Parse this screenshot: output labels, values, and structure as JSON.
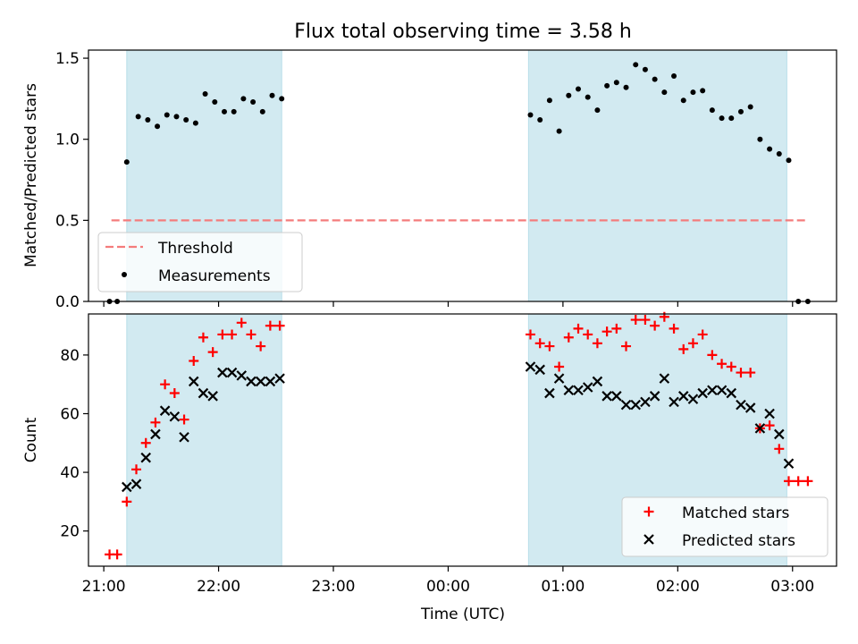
{
  "colors": {
    "threshold": "#f47c7c",
    "measurement": "#000000",
    "matched": "#ff0000",
    "predicted": "#000000",
    "shade": "#add8e6"
  },
  "chart_data": [
    {
      "type": "scatter",
      "title": "Flux total observing time = 3.58 h",
      "ylabel": "Matched/Predicted stars",
      "xlabel": "",
      "ylim": [
        0,
        1.55
      ],
      "xlim": [
        "20:52",
        "03:23"
      ],
      "yticks": [
        "0.0",
        "0.5",
        "1.0",
        "1.5"
      ],
      "grid": false,
      "legend": {
        "placement": "lower-left",
        "entries": [
          "Threshold",
          "Measurements"
        ]
      },
      "shaded_intervals": [
        [
          "21:12",
          "22:33"
        ],
        [
          "00:42",
          "02:57"
        ]
      ],
      "threshold": {
        "name": "Threshold",
        "y": 0.5,
        "x": [
          "21:04",
          "03:07"
        ]
      },
      "series": [
        {
          "name": "Measurements",
          "marker": "dot",
          "x": [
            "21:03",
            "21:07",
            "21:12",
            "21:18",
            "21:23",
            "21:28",
            "21:33",
            "21:38",
            "21:43",
            "21:48",
            "21:53",
            "21:58",
            "22:03",
            "22:08",
            "22:13",
            "22:18",
            "22:23",
            "22:28",
            "22:33",
            "00:43",
            "00:48",
            "00:53",
            "00:58",
            "01:03",
            "01:08",
            "01:13",
            "01:18",
            "01:23",
            "01:28",
            "01:33",
            "01:38",
            "01:43",
            "01:48",
            "01:53",
            "01:58",
            "02:03",
            "02:08",
            "02:13",
            "02:18",
            "02:23",
            "02:28",
            "02:33",
            "02:38",
            "02:43",
            "02:48",
            "02:53",
            "02:58",
            "03:03",
            "03:08"
          ],
          "y": [
            0.0,
            0.0,
            0.86,
            1.14,
            1.12,
            1.08,
            1.15,
            1.14,
            1.12,
            1.1,
            1.28,
            1.23,
            1.17,
            1.17,
            1.25,
            1.23,
            1.17,
            1.27,
            1.25,
            1.15,
            1.12,
            1.24,
            1.05,
            1.27,
            1.31,
            1.26,
            1.18,
            1.33,
            1.35,
            1.32,
            1.46,
            1.43,
            1.37,
            1.29,
            1.39,
            1.24,
            1.29,
            1.3,
            1.18,
            1.13,
            1.13,
            1.17,
            1.2,
            1.0,
            0.94,
            0.91,
            0.87,
            0.0,
            0.0
          ]
        }
      ]
    },
    {
      "type": "scatter",
      "title": "",
      "ylabel": "Count",
      "xlabel": "Time (UTC)",
      "ylim": [
        8,
        94
      ],
      "xlim": [
        "20:52",
        "03:23"
      ],
      "yticks": [
        "20",
        "40",
        "60",
        "80"
      ],
      "xticks": [
        "21:00",
        "22:00",
        "23:00",
        "00:00",
        "01:00",
        "02:00",
        "03:00"
      ],
      "grid": false,
      "legend": {
        "placement": "lower-right",
        "entries": [
          "Matched stars",
          "Predicted stars"
        ]
      },
      "shaded_intervals": [
        [
          "21:12",
          "22:33"
        ],
        [
          "00:42",
          "02:57"
        ]
      ],
      "series": [
        {
          "name": "Matched stars",
          "marker": "plus",
          "x": [
            "21:03",
            "21:07",
            "21:12",
            "21:17",
            "21:22",
            "21:27",
            "21:32",
            "21:37",
            "21:42",
            "21:47",
            "21:52",
            "21:57",
            "22:02",
            "22:07",
            "22:12",
            "22:17",
            "22:22",
            "22:27",
            "22:32",
            "00:43",
            "00:48",
            "00:53",
            "00:58",
            "01:03",
            "01:08",
            "01:13",
            "01:18",
            "01:23",
            "01:28",
            "01:33",
            "01:38",
            "01:43",
            "01:48",
            "01:53",
            "01:58",
            "02:03",
            "02:08",
            "02:13",
            "02:18",
            "02:23",
            "02:28",
            "02:33",
            "02:38",
            "02:43",
            "02:48",
            "02:53",
            "02:58",
            "03:03",
            "03:08"
          ],
          "y": [
            12,
            12,
            30,
            41,
            50,
            57,
            70,
            67,
            58,
            78,
            86,
            81,
            87,
            87,
            91,
            87,
            83,
            90,
            90,
            87,
            84,
            83,
            76,
            86,
            89,
            87,
            84,
            88,
            89,
            83,
            92,
            92,
            90,
            93,
            89,
            82,
            84,
            87,
            80,
            77,
            76,
            74,
            74,
            55,
            56,
            48,
            37,
            37,
            37
          ]
        },
        {
          "name": "Predicted stars",
          "marker": "x",
          "x": [
            "21:12",
            "21:17",
            "21:22",
            "21:27",
            "21:32",
            "21:37",
            "21:42",
            "21:47",
            "21:52",
            "21:57",
            "22:02",
            "22:07",
            "22:12",
            "22:17",
            "22:22",
            "22:27",
            "22:32",
            "00:43",
            "00:48",
            "00:53",
            "00:58",
            "01:03",
            "01:08",
            "01:13",
            "01:18",
            "01:23",
            "01:28",
            "01:33",
            "01:38",
            "01:43",
            "01:48",
            "01:53",
            "01:58",
            "02:03",
            "02:08",
            "02:13",
            "02:18",
            "02:23",
            "02:28",
            "02:33",
            "02:38",
            "02:43",
            "02:48",
            "02:53",
            "02:58"
          ],
          "y": [
            35,
            36,
            45,
            53,
            61,
            59,
            52,
            71,
            67,
            66,
            74,
            74,
            73,
            71,
            71,
            71,
            72,
            76,
            75,
            67,
            72,
            68,
            68,
            69,
            71,
            66,
            66,
            63,
            63,
            64,
            66,
            72,
            64,
            66,
            65,
            67,
            68,
            68,
            67,
            63,
            62,
            55,
            60,
            53,
            43
          ]
        }
      ]
    }
  ]
}
